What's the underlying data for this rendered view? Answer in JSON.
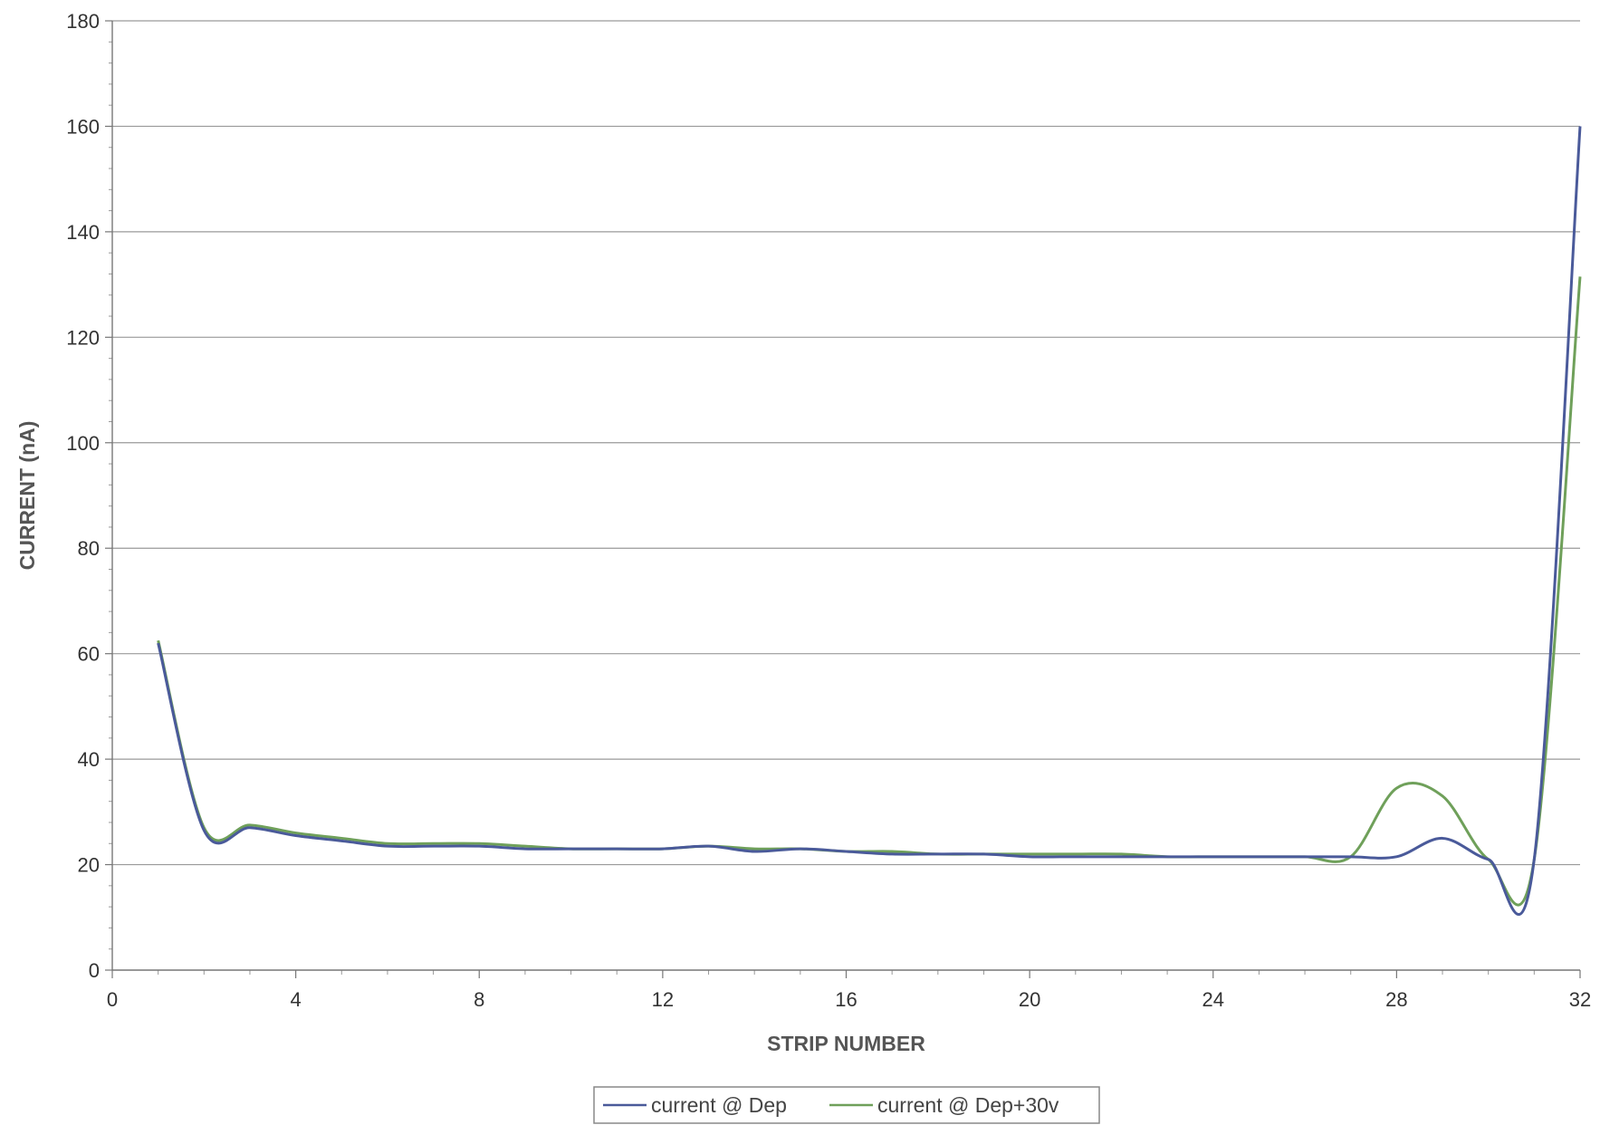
{
  "chart_data": {
    "type": "line",
    "title": "",
    "xlabel": "STRIP NUMBER",
    "ylabel": "CURRENT (nA)",
    "xlim": [
      0,
      32
    ],
    "ylim": [
      0,
      180
    ],
    "x_ticks": [
      0,
      4,
      8,
      12,
      16,
      20,
      24,
      28,
      32
    ],
    "y_ticks": [
      0,
      20,
      40,
      60,
      80,
      100,
      120,
      140,
      160,
      180
    ],
    "grid": true,
    "legend_position": "bottom",
    "x": [
      1,
      2,
      3,
      4,
      5,
      6,
      7,
      8,
      9,
      10,
      11,
      12,
      13,
      14,
      15,
      16,
      17,
      18,
      19,
      20,
      21,
      22,
      23,
      24,
      25,
      26,
      27,
      28,
      29,
      30,
      31,
      32
    ],
    "series": [
      {
        "name": "current @ Dep",
        "color": "#4a5a9a",
        "values": [
          62,
          26.5,
          27,
          25.5,
          24.5,
          23.5,
          23.5,
          23.5,
          23,
          23,
          23,
          23,
          23.5,
          22.5,
          23,
          22.5,
          22,
          22,
          22,
          21.5,
          21.5,
          21.5,
          21.5,
          21.5,
          21.5,
          21.5,
          21.5,
          21.5,
          25,
          21,
          21,
          160
        ]
      },
      {
        "name": "current @ Dep+30v",
        "color": "#6fa05a",
        "values": [
          62.5,
          27,
          27.5,
          26,
          25,
          24,
          24,
          24,
          23.5,
          23,
          23,
          23,
          23.5,
          23,
          23,
          22.5,
          22.5,
          22,
          22,
          22,
          22,
          22,
          21.5,
          21.5,
          21.5,
          21.5,
          21.5,
          34.5,
          33,
          21,
          21,
          131.5
        ]
      }
    ]
  }
}
